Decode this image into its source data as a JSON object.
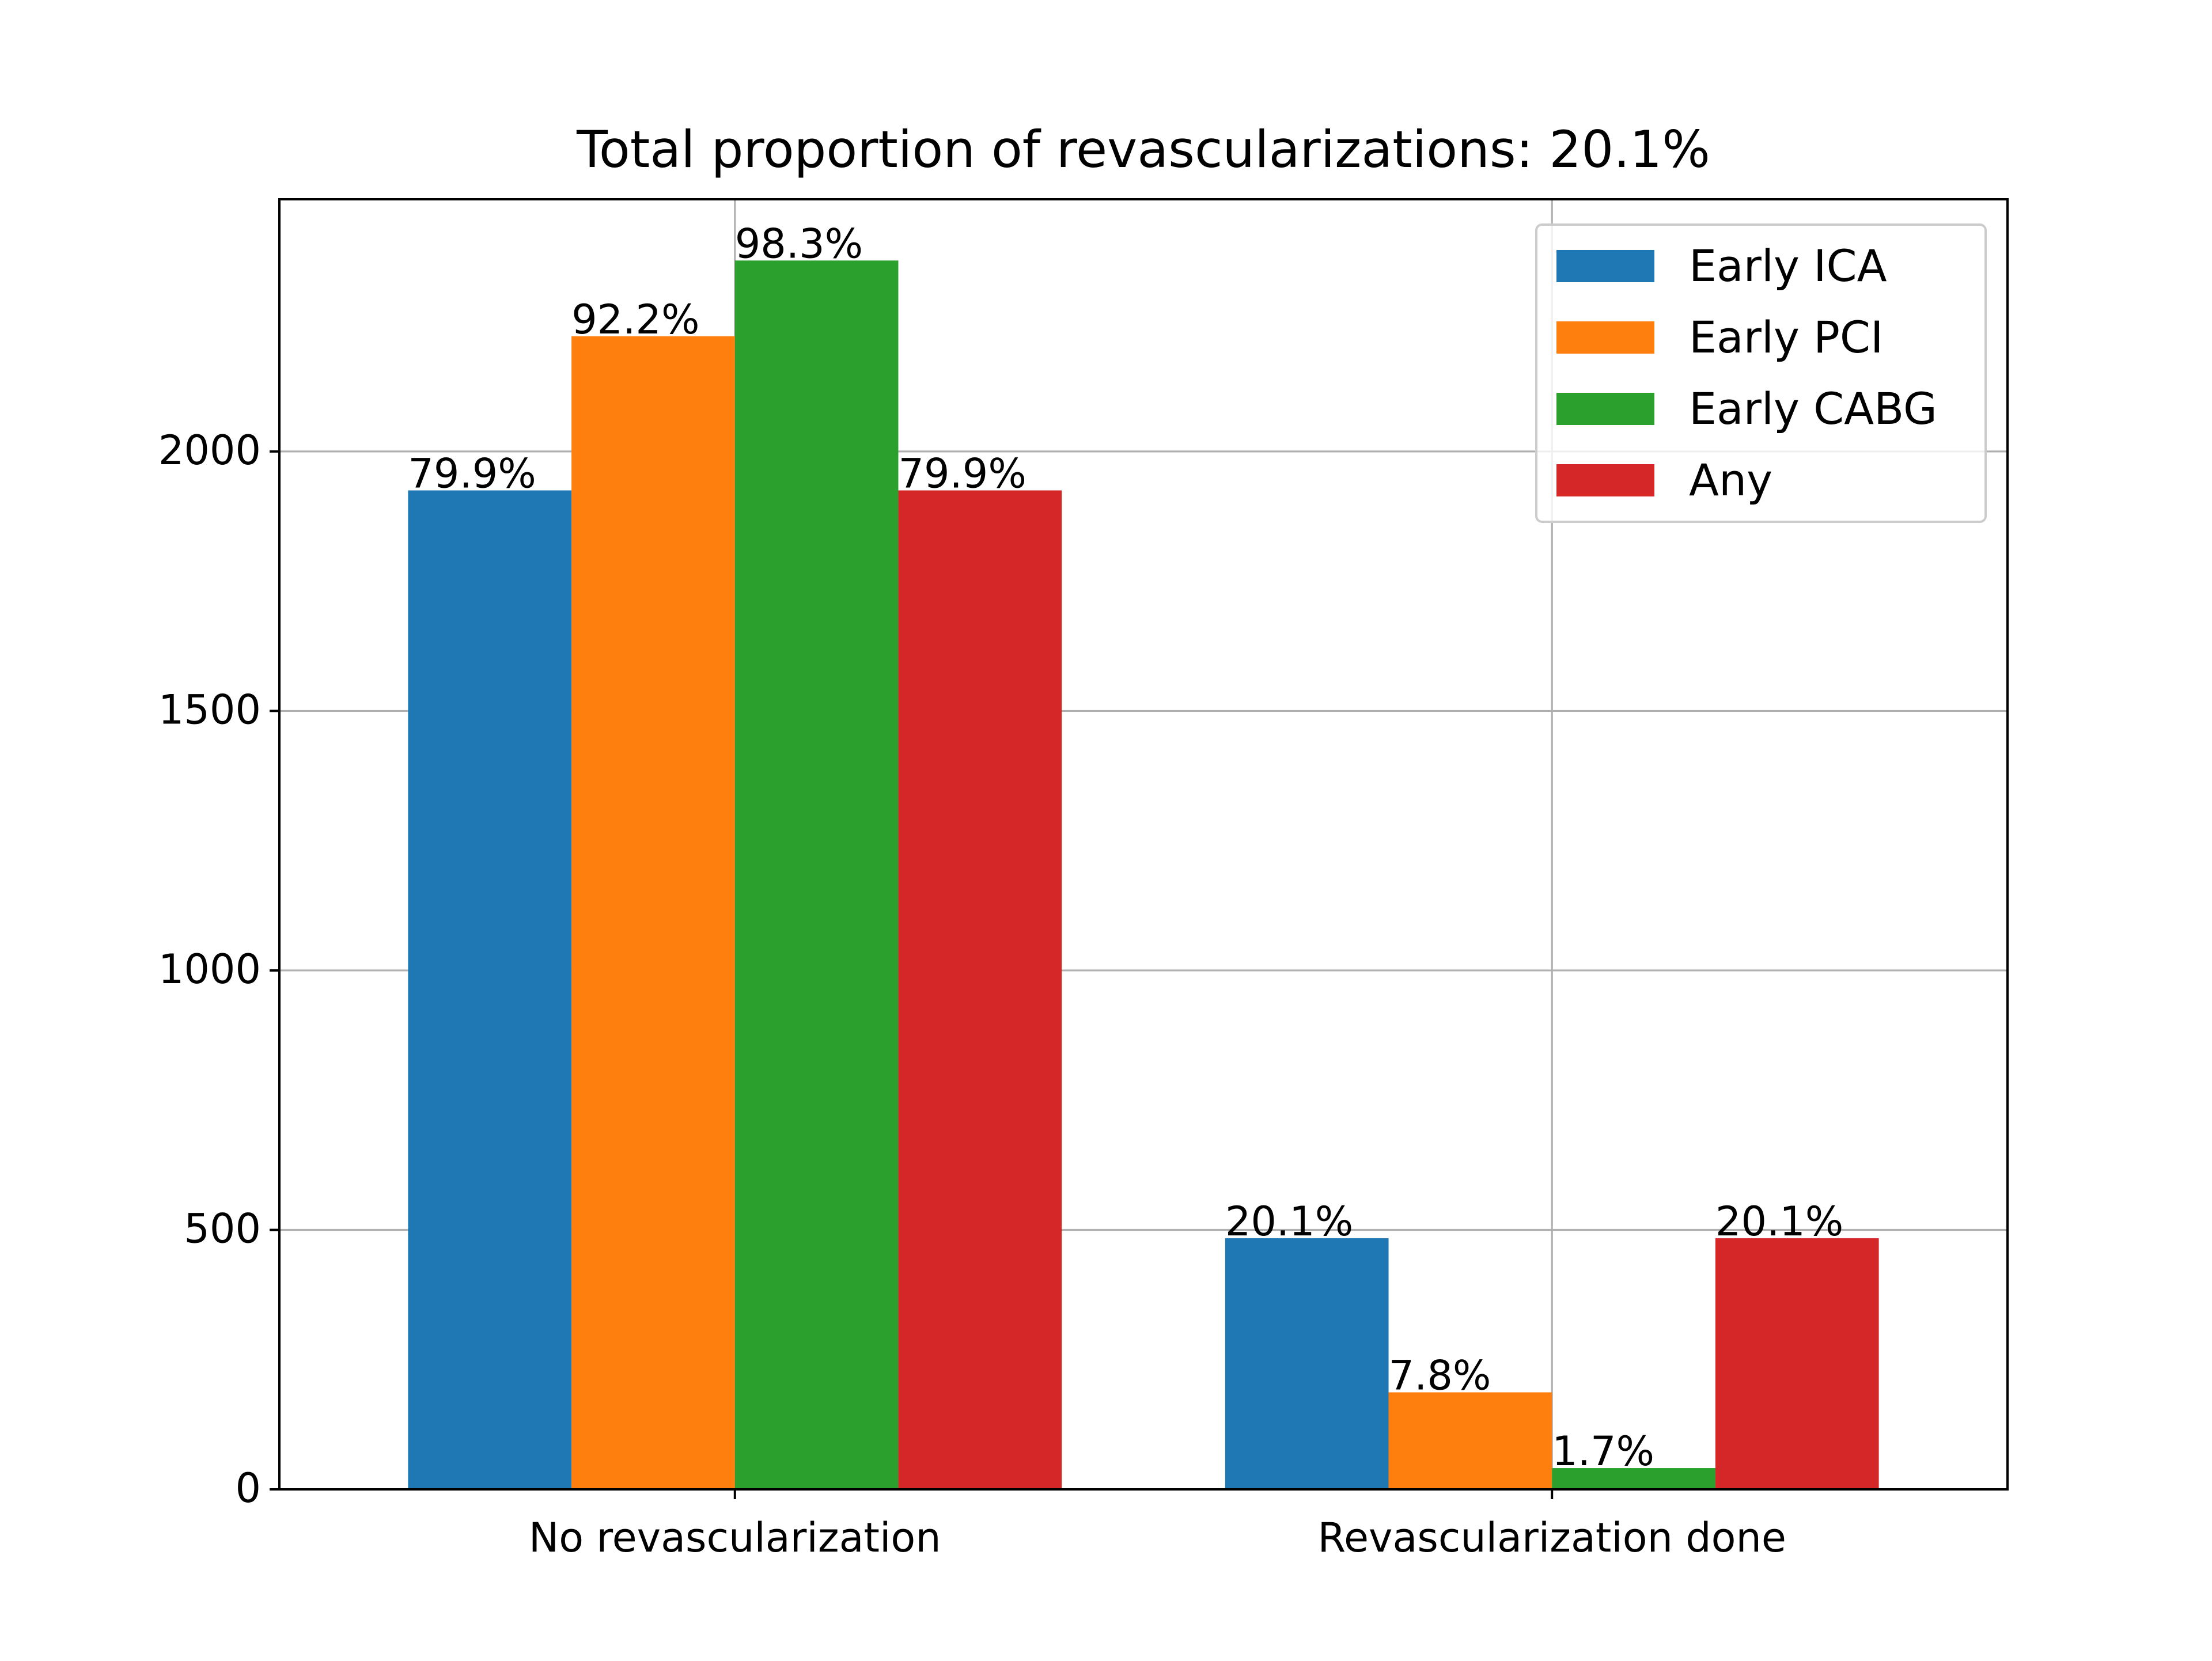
{
  "chart_data": {
    "type": "bar",
    "title": "Total proportion of revascularizations: 20.1%",
    "xlabel": "",
    "ylabel": "",
    "categories": [
      "No revascularization",
      "Revascularization done"
    ],
    "series": [
      {
        "name": "Early ICA",
        "color": "#1f77b4",
        "values": [
          1925,
          484
        ],
        "labels": [
          "79.9%",
          "20.1%"
        ]
      },
      {
        "name": "Early PCI",
        "color": "#ff7f0e",
        "values": [
          2222,
          187
        ],
        "labels": [
          "92.2%",
          "7.8%"
        ]
      },
      {
        "name": "Early CABG",
        "color": "#2ca02c",
        "values": [
          2368,
          41
        ],
        "labels": [
          "98.3%",
          "1.7%"
        ]
      },
      {
        "name": "Any",
        "color": "#d62728",
        "values": [
          1925,
          484
        ],
        "labels": [
          "79.9%",
          "20.1%"
        ]
      }
    ],
    "ylim": [
      0,
      2486
    ],
    "yticks": [
      0,
      500,
      1000,
      1500,
      2000
    ],
    "grid": true,
    "legend": "top-right"
  }
}
